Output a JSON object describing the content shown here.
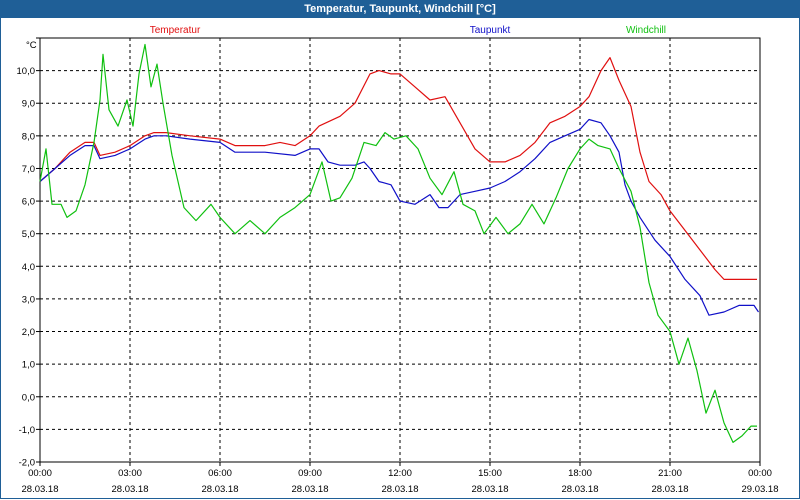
{
  "window": {
    "title": "Temperatur, Taupunkt, Windchill [°C]"
  },
  "chart_data": {
    "type": "line",
    "title": "Temperatur, Taupunkt, Windchill [°C]",
    "ylabel": "°C",
    "ylim": [
      -2.0,
      11.0
    ],
    "xlim": [
      0,
      24
    ],
    "yticks": [
      11.0,
      10.0,
      9.0,
      8.0,
      7.0,
      6.0,
      5.0,
      4.0,
      3.0,
      2.0,
      1.0,
      0.0,
      -1.0,
      -2.0
    ],
    "ytick_labels": [
      "",
      "10,0",
      "9,0",
      "8,0",
      "7,0",
      "6,0",
      "5,0",
      "4,0",
      "3,0",
      "2,0",
      "1,0",
      "0,0",
      "-1,0",
      "-2,0"
    ],
    "xticks": [
      {
        "time": "00:00",
        "date": "28.03.18"
      },
      {
        "time": "03:00",
        "date": "28.03.18"
      },
      {
        "time": "06:00",
        "date": "28.03.18"
      },
      {
        "time": "09:00",
        "date": "28.03.18"
      },
      {
        "time": "12:00",
        "date": "28.03.18"
      },
      {
        "time": "15:00",
        "date": "28.03.18"
      },
      {
        "time": "18:00",
        "date": "28.03.18"
      },
      {
        "time": "21:00",
        "date": "28.03.18"
      },
      {
        "time": "00:00",
        "date": "29.03.18"
      }
    ],
    "grid": true,
    "series": [
      {
        "name": "Temperatur",
        "color": "#e01010",
        "points": [
          [
            0,
            6.6
          ],
          [
            0.5,
            7.0
          ],
          [
            1.0,
            7.5
          ],
          [
            1.5,
            7.8
          ],
          [
            1.8,
            7.8
          ],
          [
            2.0,
            7.4
          ],
          [
            2.5,
            7.5
          ],
          [
            3.0,
            7.7
          ],
          [
            3.5,
            8.0
          ],
          [
            3.8,
            8.1
          ],
          [
            4.2,
            8.1
          ],
          [
            5.0,
            8.0
          ],
          [
            6.0,
            7.9
          ],
          [
            6.5,
            7.7
          ],
          [
            7.5,
            7.7
          ],
          [
            8.0,
            7.8
          ],
          [
            8.5,
            7.7
          ],
          [
            9.0,
            8.0
          ],
          [
            9.3,
            8.3
          ],
          [
            10.0,
            8.6
          ],
          [
            10.5,
            9.0
          ],
          [
            11.0,
            9.9
          ],
          [
            11.3,
            10.0
          ],
          [
            11.7,
            9.9
          ],
          [
            12.0,
            9.9
          ],
          [
            12.5,
            9.5
          ],
          [
            13.0,
            9.1
          ],
          [
            13.5,
            9.2
          ],
          [
            14.0,
            8.4
          ],
          [
            14.5,
            7.6
          ],
          [
            15.0,
            7.2
          ],
          [
            15.5,
            7.2
          ],
          [
            16.0,
            7.4
          ],
          [
            16.5,
            7.8
          ],
          [
            17.0,
            8.4
          ],
          [
            17.5,
            8.6
          ],
          [
            18.0,
            8.9
          ],
          [
            18.3,
            9.2
          ],
          [
            18.7,
            10.0
          ],
          [
            19.0,
            10.4
          ],
          [
            19.3,
            9.7
          ],
          [
            19.7,
            8.9
          ],
          [
            20.0,
            7.5
          ],
          [
            20.3,
            6.6
          ],
          [
            20.7,
            6.2
          ],
          [
            21.0,
            5.7
          ],
          [
            21.5,
            5.1
          ],
          [
            22.0,
            4.5
          ],
          [
            22.5,
            3.9
          ],
          [
            22.8,
            3.6
          ],
          [
            23.3,
            3.6
          ],
          [
            23.9,
            3.6
          ]
        ]
      },
      {
        "name": "Taupunkt",
        "color": "#1010c8",
        "points": [
          [
            0,
            6.6
          ],
          [
            0.5,
            7.0
          ],
          [
            1.0,
            7.4
          ],
          [
            1.5,
            7.7
          ],
          [
            1.8,
            7.7
          ],
          [
            2.0,
            7.3
          ],
          [
            2.5,
            7.4
          ],
          [
            3.0,
            7.6
          ],
          [
            3.5,
            7.9
          ],
          [
            3.8,
            8.0
          ],
          [
            4.2,
            8.0
          ],
          [
            5.0,
            7.9
          ],
          [
            6.0,
            7.8
          ],
          [
            6.5,
            7.5
          ],
          [
            7.5,
            7.5
          ],
          [
            8.5,
            7.4
          ],
          [
            9.0,
            7.6
          ],
          [
            9.3,
            7.6
          ],
          [
            9.6,
            7.2
          ],
          [
            10.0,
            7.1
          ],
          [
            10.5,
            7.1
          ],
          [
            10.8,
            7.2
          ],
          [
            11.0,
            7.0
          ],
          [
            11.3,
            6.6
          ],
          [
            11.7,
            6.5
          ],
          [
            12.0,
            6.0
          ],
          [
            12.5,
            5.9
          ],
          [
            13.0,
            6.2
          ],
          [
            13.3,
            5.8
          ],
          [
            13.6,
            5.8
          ],
          [
            14.0,
            6.2
          ],
          [
            14.5,
            6.3
          ],
          [
            15.0,
            6.4
          ],
          [
            15.5,
            6.6
          ],
          [
            16.0,
            6.9
          ],
          [
            16.5,
            7.3
          ],
          [
            17.0,
            7.8
          ],
          [
            17.5,
            8.0
          ],
          [
            18.0,
            8.2
          ],
          [
            18.3,
            8.5
          ],
          [
            18.7,
            8.4
          ],
          [
            19.0,
            8.0
          ],
          [
            19.3,
            7.5
          ],
          [
            19.5,
            6.5
          ],
          [
            19.7,
            6.0
          ],
          [
            20.0,
            5.5
          ],
          [
            20.5,
            4.8
          ],
          [
            21.0,
            4.3
          ],
          [
            21.5,
            3.6
          ],
          [
            22.0,
            3.1
          ],
          [
            22.3,
            2.5
          ],
          [
            22.8,
            2.6
          ],
          [
            23.3,
            2.8
          ],
          [
            23.8,
            2.8
          ],
          [
            23.95,
            2.6
          ]
        ]
      },
      {
        "name": "Windchill",
        "color": "#10c010",
        "points": [
          [
            0,
            6.6
          ],
          [
            0.2,
            7.6
          ],
          [
            0.4,
            5.9
          ],
          [
            0.7,
            5.9
          ],
          [
            0.9,
            5.5
          ],
          [
            1.2,
            5.7
          ],
          [
            1.5,
            6.5
          ],
          [
            1.8,
            7.8
          ],
          [
            2.0,
            9.1
          ],
          [
            2.1,
            10.5
          ],
          [
            2.3,
            8.8
          ],
          [
            2.6,
            8.3
          ],
          [
            2.9,
            9.1
          ],
          [
            3.1,
            8.3
          ],
          [
            3.3,
            9.9
          ],
          [
            3.5,
            10.8
          ],
          [
            3.7,
            9.5
          ],
          [
            3.9,
            10.2
          ],
          [
            4.1,
            9.0
          ],
          [
            4.4,
            7.4
          ],
          [
            4.8,
            5.8
          ],
          [
            5.2,
            5.4
          ],
          [
            5.7,
            5.9
          ],
          [
            6.0,
            5.5
          ],
          [
            6.5,
            5.0
          ],
          [
            7.0,
            5.4
          ],
          [
            7.5,
            5.0
          ],
          [
            8.0,
            5.5
          ],
          [
            8.5,
            5.8
          ],
          [
            9.0,
            6.2
          ],
          [
            9.4,
            7.2
          ],
          [
            9.7,
            6.0
          ],
          [
            10.0,
            6.1
          ],
          [
            10.4,
            6.7
          ],
          [
            10.8,
            7.8
          ],
          [
            11.2,
            7.7
          ],
          [
            11.5,
            8.1
          ],
          [
            11.8,
            7.9
          ],
          [
            12.2,
            8.0
          ],
          [
            12.6,
            7.6
          ],
          [
            13.0,
            6.7
          ],
          [
            13.4,
            6.2
          ],
          [
            13.8,
            6.9
          ],
          [
            14.1,
            5.9
          ],
          [
            14.5,
            5.7
          ],
          [
            14.8,
            5.0
          ],
          [
            15.2,
            5.5
          ],
          [
            15.6,
            5.0
          ],
          [
            16.0,
            5.3
          ],
          [
            16.4,
            5.9
          ],
          [
            16.8,
            5.3
          ],
          [
            17.2,
            6.1
          ],
          [
            17.6,
            7.0
          ],
          [
            18.0,
            7.6
          ],
          [
            18.3,
            7.9
          ],
          [
            18.6,
            7.7
          ],
          [
            19.0,
            7.6
          ],
          [
            19.3,
            7.0
          ],
          [
            19.7,
            6.3
          ],
          [
            20.0,
            5.2
          ],
          [
            20.3,
            3.5
          ],
          [
            20.6,
            2.5
          ],
          [
            21.0,
            2.0
          ],
          [
            21.3,
            1.0
          ],
          [
            21.6,
            1.8
          ],
          [
            21.9,
            0.8
          ],
          [
            22.2,
            -0.5
          ],
          [
            22.5,
            0.2
          ],
          [
            22.8,
            -0.8
          ],
          [
            23.1,
            -1.4
          ],
          [
            23.4,
            -1.2
          ],
          [
            23.7,
            -0.9
          ],
          [
            23.9,
            -0.9
          ]
        ]
      }
    ]
  }
}
